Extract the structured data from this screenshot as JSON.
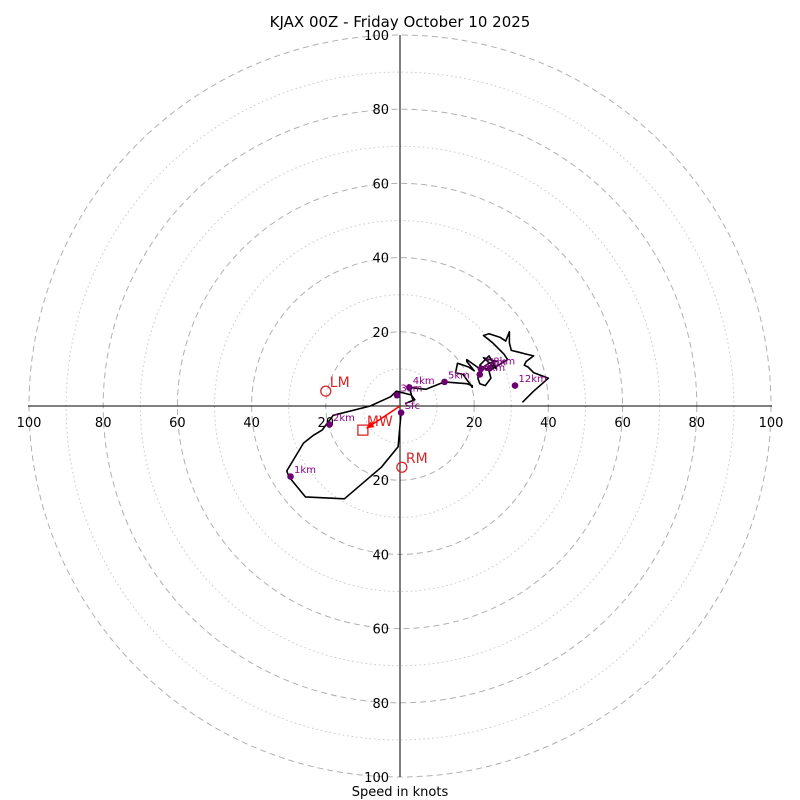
{
  "chart_data": {
    "type": "hodograph",
    "title": "KJAX 00Z - Friday October 10 2025",
    "xlabel": "Speed in knots",
    "units": "knots",
    "max_speed": 100,
    "major_rings": [
      20,
      40,
      60,
      80,
      100
    ],
    "minor_rings": [
      10,
      30,
      50,
      70,
      90
    ],
    "x_tick_labels": [
      {
        "value": -100,
        "label": "100"
      },
      {
        "value": -80,
        "label": "80"
      },
      {
        "value": -60,
        "label": "60"
      },
      {
        "value": -40,
        "label": "40"
      },
      {
        "value": -20,
        "label": "20"
      },
      {
        "value": 20,
        "label": "20"
      },
      {
        "value": 40,
        "label": "40"
      },
      {
        "value": 60,
        "label": "60"
      },
      {
        "value": 80,
        "label": "80"
      },
      {
        "value": 100,
        "label": "100"
      }
    ],
    "y_tick_labels": [
      {
        "value": 100,
        "label": "100"
      },
      {
        "value": 80,
        "label": "80"
      },
      {
        "value": 60,
        "label": "60"
      },
      {
        "value": 40,
        "label": "40"
      },
      {
        "value": 20,
        "label": "20"
      },
      {
        "value": -20,
        "label": "20"
      },
      {
        "value": -40,
        "label": "40"
      },
      {
        "value": -60,
        "label": "60"
      },
      {
        "value": -80,
        "label": "80"
      },
      {
        "value": -100,
        "label": "100"
      }
    ],
    "hodograph_uv": [
      [
        0.3,
        -1.8
      ],
      [
        -0.5,
        -11
      ],
      [
        -5,
        -16.5
      ],
      [
        -15,
        -25
      ],
      [
        -25.5,
        -24.5
      ],
      [
        -30,
        -19
      ],
      [
        -30.5,
        -17.5
      ],
      [
        -26,
        -10
      ],
      [
        -23.5,
        -8
      ],
      [
        -21,
        -6.5
      ],
      [
        -18,
        -2.5
      ],
      [
        -8,
        0
      ],
      [
        -2.5,
        2.5
      ],
      [
        -1,
        4
      ],
      [
        3,
        3
      ],
      [
        4,
        1.7
      ],
      [
        1.5,
        0.7
      ],
      [
        3.5,
        1.5
      ],
      [
        2.5,
        5
      ],
      [
        7,
        4.5
      ],
      [
        12,
        6.5
      ],
      [
        18,
        6
      ],
      [
        19.5,
        5.5
      ],
      [
        19.5,
        5
      ],
      [
        17,
        8.5
      ],
      [
        15,
        9
      ],
      [
        15.5,
        11.5
      ],
      [
        18.5,
        10.5
      ],
      [
        20,
        9.5
      ],
      [
        18,
        12
      ],
      [
        18,
        12.5
      ],
      [
        21.5,
        10
      ],
      [
        21.5,
        9.5
      ],
      [
        21,
        7.5
      ],
      [
        21.5,
        6
      ],
      [
        23,
        5.5
      ],
      [
        24.5,
        7.5
      ],
      [
        24,
        9.5
      ],
      [
        22.5,
        10.5
      ],
      [
        24,
        11.5
      ],
      [
        26,
        12
      ],
      [
        22.5,
        13
      ],
      [
        26,
        10
      ],
      [
        24,
        13.5
      ],
      [
        23,
        12.5
      ],
      [
        21.5,
        11
      ],
      [
        24,
        9.5
      ],
      [
        29,
        12.5
      ],
      [
        28,
        14
      ],
      [
        25,
        17
      ],
      [
        22.5,
        19
      ],
      [
        24,
        19.5
      ],
      [
        27,
        18.5
      ],
      [
        28.5,
        17.5
      ],
      [
        29.5,
        20
      ],
      [
        29.5,
        17
      ],
      [
        30,
        15
      ],
      [
        32,
        14.5
      ],
      [
        34,
        14
      ],
      [
        36,
        13.5
      ],
      [
        34,
        12
      ],
      [
        33.5,
        11
      ],
      [
        34.5,
        10.5
      ],
      [
        36,
        9
      ],
      [
        40,
        7.5
      ],
      [
        36,
        4
      ],
      [
        33,
        1
      ]
    ],
    "height_markers": [
      {
        "label": "Sfc",
        "u": 0.3,
        "v": -1.8
      },
      {
        "label": "1km",
        "u": -29.5,
        "v": -19
      },
      {
        "label": "2km",
        "u": -19,
        "v": -5
      },
      {
        "label": "3km",
        "u": -0.8,
        "v": 2.9
      },
      {
        "label": "4km",
        "u": 2.5,
        "v": 5
      },
      {
        "label": "5km",
        "u": 12,
        "v": 6.5
      },
      {
        "label": "6km",
        "u": 21.5,
        "v": 8.5
      },
      {
        "label": "7km",
        "u": 21.8,
        "v": 10
      },
      {
        "label": "8km",
        "u": 24.2,
        "v": 10.2
      },
      {
        "label": "12km",
        "u": 31,
        "v": 5.5
      }
    ],
    "storm_motion": [
      {
        "label": "LM",
        "u": -20,
        "v": 4,
        "marker": "circle"
      },
      {
        "label": "RM",
        "u": 0.5,
        "v": -16.5,
        "marker": "circle"
      },
      {
        "label": "MW",
        "u": -10,
        "v": -6.5,
        "marker": "square"
      }
    ],
    "mean_wind_vector": {
      "from_u": 0,
      "from_v": 0,
      "to_u": -9,
      "to_v": -6
    },
    "colors": {
      "trace": "#000000",
      "marker": "#6a006f",
      "marker_label": "#8b008b",
      "storm_motion": "#d62728",
      "mean_wind_arrow": "#ff0000",
      "grid": "#b0b0b0"
    }
  }
}
